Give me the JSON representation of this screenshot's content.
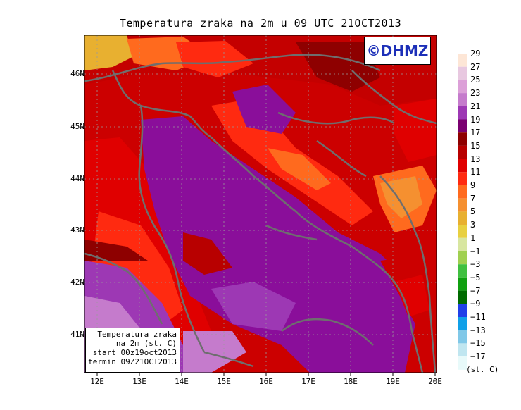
{
  "title": "Temperatura zraka na 2m u 09 UTC 21OCT2013",
  "logo": "©DHMZ",
  "info": {
    "line1": "Temperatura zraka",
    "line2": "na 2m (st. C)",
    "line3": "start 00z19oct2013",
    "line4": "termin 09Z21OCT2013"
  },
  "lat_labels": [
    "46N",
    "45N",
    "44N",
    "43N",
    "42N",
    "41N"
  ],
  "lon_labels": [
    "12E",
    "13E",
    "14E",
    "15E",
    "16E",
    "17E",
    "18E",
    "19E",
    "20E"
  ],
  "colorbar": {
    "labels": [
      "29",
      "27",
      "25",
      "23",
      "21",
      "19",
      "17",
      "15",
      "13",
      "11",
      "9",
      "7",
      "5",
      "3",
      "1",
      "−1",
      "−3",
      "−5",
      "−7",
      "−9",
      "−11",
      "−13",
      "−15",
      "−17"
    ],
    "unit": "(st. C)",
    "colors": [
      "#fde6d6",
      "#e8c8e0",
      "#dca0d8",
      "#c57bcc",
      "#9d38b4",
      "#7a0070",
      "#8e0000",
      "#b80000",
      "#e00000",
      "#ff2a10",
      "#ff6a1e",
      "#f59030",
      "#e8b030",
      "#e8d040",
      "#d8e6a0",
      "#a0d050",
      "#40c040",
      "#10a010",
      "#006a00",
      "#2040e8",
      "#10a0e8",
      "#80c8e8",
      "#c0e6f0",
      "#e8fafa"
    ]
  },
  "colors": {
    "sea": "#8a0e9a",
    "coast": "#6e6e6e",
    "grid": "#9a9a9a",
    "logo_text": "#1c2fb8"
  }
}
